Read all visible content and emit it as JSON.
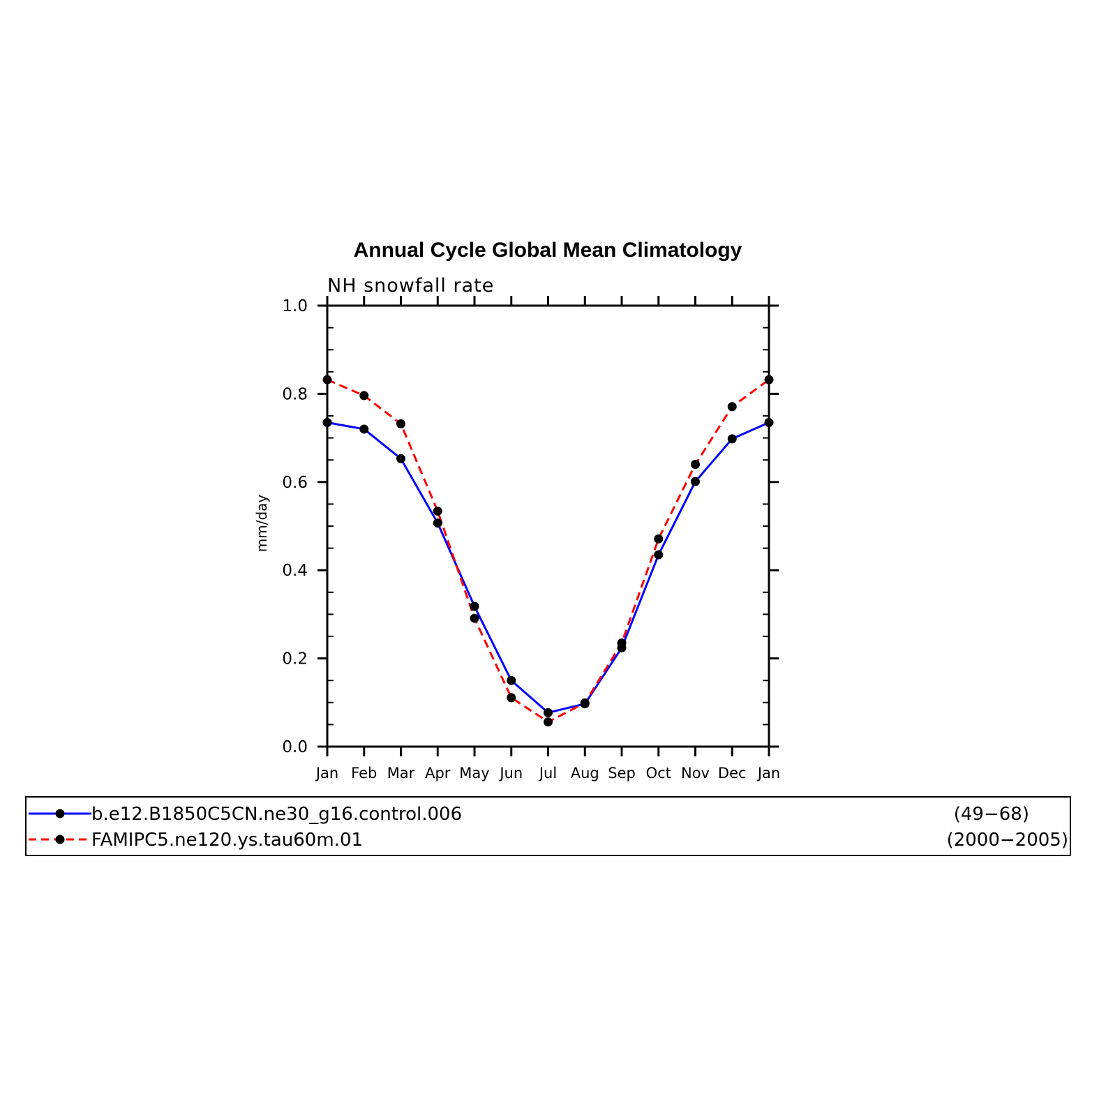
{
  "chart_data": {
    "type": "line",
    "title": "Annual Cycle Global Mean Climatology",
    "subtitle": "NH snowfall rate",
    "ylabel": "mm/day",
    "xlabel": "",
    "categories": [
      "Jan",
      "Feb",
      "Mar",
      "Apr",
      "May",
      "Jun",
      "Jul",
      "Aug",
      "Sep",
      "Oct",
      "Nov",
      "Dec",
      "Jan"
    ],
    "ylim": [
      0.0,
      1.0
    ],
    "yticks": [
      "0.0",
      "0.2",
      "0.4",
      "0.6",
      "0.8",
      "1.0"
    ],
    "grid": false,
    "legend_position": "bottom",
    "series": [
      {
        "name": "b.e12.B1850C5CN.ne30_g16.control.006",
        "period": "(49−68)",
        "color": "#0000ff",
        "style": "solid",
        "values": [
          0.735,
          0.72,
          0.653,
          0.507,
          0.318,
          0.15,
          0.077,
          0.097,
          0.224,
          0.435,
          0.601,
          0.698,
          0.735
        ]
      },
      {
        "name": "FAMIPC5.ne120.ys.tau60m.01",
        "period": "(2000−2005)",
        "color": "#ff0000",
        "style": "dashed",
        "values": [
          0.832,
          0.796,
          0.732,
          0.534,
          0.291,
          0.111,
          0.056,
          0.099,
          0.235,
          0.471,
          0.64,
          0.771,
          0.832
        ]
      }
    ]
  }
}
